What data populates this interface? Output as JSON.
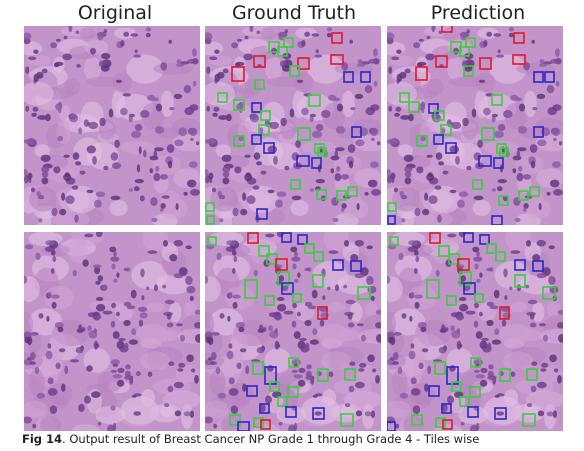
{
  "columns": {
    "original": "Original",
    "ground_truth": "Ground Truth",
    "prediction": "Prediction"
  },
  "caption": {
    "label": "Fig 14",
    "text": ". Output result of Breast Cancer NP Grade 1 through Grade 4 - Tiles wise"
  },
  "colors": {
    "tissue_base": "#c394c9",
    "box_green": "#35d13a",
    "box_red": "#e0192c",
    "box_blue": "#2a27c9"
  }
}
